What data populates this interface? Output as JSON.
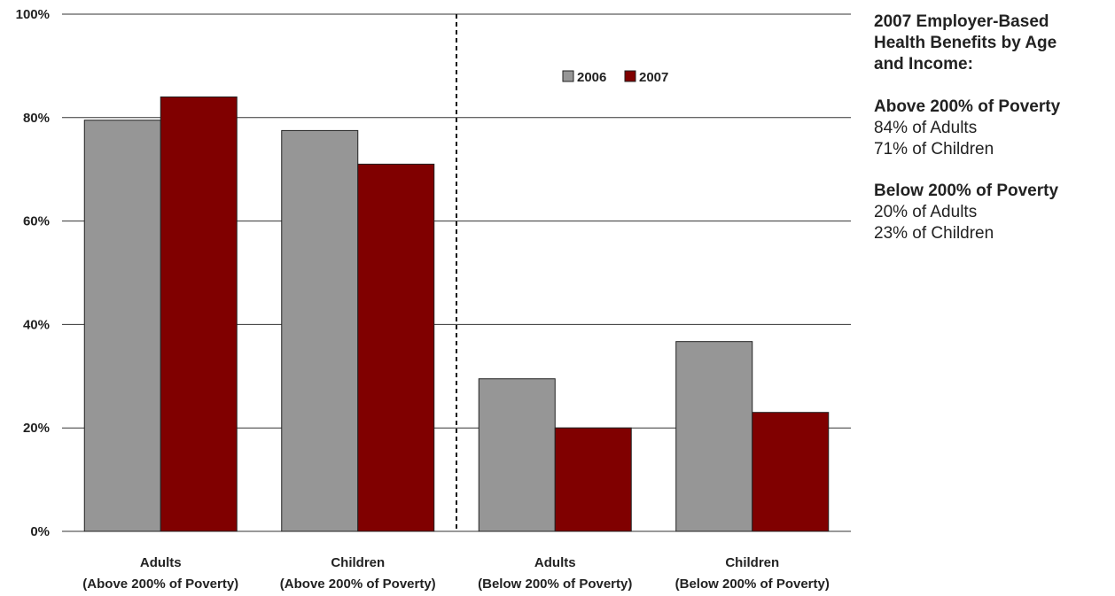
{
  "colors": {
    "series_2006": "#969696",
    "series_2007": "#800000",
    "gridline": "#333333",
    "divider": "#111111"
  },
  "chart_data": {
    "type": "bar",
    "title": "",
    "xlabel": "",
    "ylabel": "",
    "ylim": [
      0,
      100
    ],
    "yticks": [
      "0%",
      "20%",
      "40%",
      "60%",
      "80%",
      "100%"
    ],
    "grid": true,
    "legend_position": "top-center",
    "categories": [
      [
        "Adults",
        "(Above 200% of Poverty)"
      ],
      [
        "Children",
        "(Above 200% of Poverty)"
      ],
      [
        "Adults",
        "(Below 200% of Poverty)"
      ],
      [
        "Children",
        "(Below 200% of Poverty)"
      ]
    ],
    "series": [
      {
        "name": "2006",
        "values": [
          79.5,
          77.5,
          29.5,
          36.7
        ]
      },
      {
        "name": "2007",
        "values": [
          84,
          71,
          20,
          23
        ]
      }
    ],
    "divider_after_category": 2
  },
  "side_panel": {
    "heading": "2007 Employer-Based\nHealth Benefits by Age\nand Income:",
    "groups": [
      {
        "title": "Above 200% of Poverty",
        "lines": [
          "84% of Adults",
          "71% of Children"
        ]
      },
      {
        "title": "Below 200% of Poverty",
        "lines": [
          "20% of Adults",
          "23% of Children"
        ]
      }
    ]
  }
}
